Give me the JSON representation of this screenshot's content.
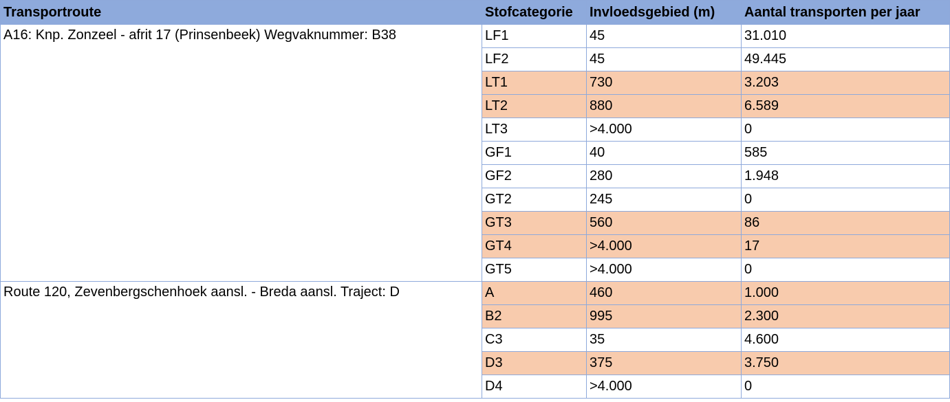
{
  "headers": [
    "Transportroute",
    "Stofcategorie",
    "Invloedsgebied (m)",
    "Aantal transporten per jaar"
  ],
  "routes": [
    {
      "name": "A16: Knp. Zonzeel - afrit 17 (Prinsenbeek) Wegvaknummer: B38",
      "rows": [
        {
          "cat": "LF1",
          "gebied": "45",
          "aantal": "31.010",
          "highlight": false
        },
        {
          "cat": "LF2",
          "gebied": "45",
          "aantal": "49.445",
          "highlight": false
        },
        {
          "cat": "LT1",
          "gebied": "730",
          "aantal": "3.203",
          "highlight": true
        },
        {
          "cat": "LT2",
          "gebied": "880",
          "aantal": "6.589",
          "highlight": true
        },
        {
          "cat": "LT3",
          "gebied": ">4.000",
          "aantal": "0",
          "highlight": false
        },
        {
          "cat": "GF1",
          "gebied": "40",
          "aantal": "585",
          "highlight": false
        },
        {
          "cat": "GF2",
          "gebied": "280",
          "aantal": "1.948",
          "highlight": false
        },
        {
          "cat": "GT2",
          "gebied": "245",
          "aantal": "0",
          "highlight": false
        },
        {
          "cat": "GT3",
          "gebied": "560",
          "aantal": "86",
          "highlight": true
        },
        {
          "cat": "GT4",
          "gebied": ">4.000",
          "aantal": "17",
          "highlight": true
        },
        {
          "cat": "GT5",
          "gebied": ">4.000",
          "aantal": "0",
          "highlight": false
        }
      ]
    },
    {
      "name": "Route 120, Zevenbergschenhoek aansl. - Breda aansl. Traject: D",
      "rows": [
        {
          "cat": "A",
          "gebied": "460",
          "aantal": "1.000",
          "highlight": true
        },
        {
          "cat": "B2",
          "gebied": "995",
          "aantal": "2.300",
          "highlight": true
        },
        {
          "cat": "C3",
          "gebied": "35",
          "aantal": "4.600",
          "highlight": false
        },
        {
          "cat": "D3",
          "gebied": "375",
          "aantal": "3.750",
          "highlight": true
        },
        {
          "cat": "D4",
          "gebied": ">4.000",
          "aantal": "0",
          "highlight": false
        }
      ]
    }
  ],
  "colors": {
    "header": "#8eaadc",
    "highlight": "#f8cbad",
    "border": "#8ea9db"
  }
}
